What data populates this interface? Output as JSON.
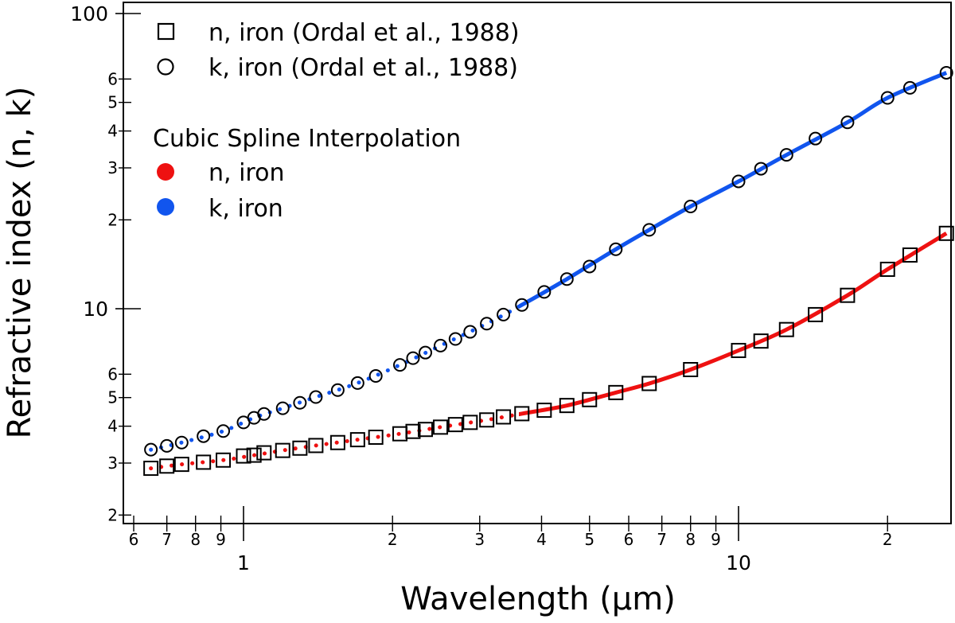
{
  "chart_data": {
    "type": "scatter",
    "xlabel": "Wavelength (µm)",
    "ylabel": "Refractive index (n, k)",
    "xscale": "log",
    "yscale": "log",
    "xlim": [
      0.6,
      28
    ],
    "ylim": [
      1.9,
      105
    ],
    "grid": false,
    "x_major_ticks": [
      {
        "value": 1,
        "label": "1"
      },
      {
        "value": 10,
        "label": "10"
      }
    ],
    "x_minor_ticks": [
      {
        "value": 0.6,
        "label": "6"
      },
      {
        "value": 0.7,
        "label": "7"
      },
      {
        "value": 0.8,
        "label": "8"
      },
      {
        "value": 0.9,
        "label": "9"
      },
      {
        "value": 2,
        "label": "2"
      },
      {
        "value": 3,
        "label": "3"
      },
      {
        "value": 4,
        "label": "4"
      },
      {
        "value": 5,
        "label": "5"
      },
      {
        "value": 6,
        "label": "6"
      },
      {
        "value": 7,
        "label": "7"
      },
      {
        "value": 8,
        "label": "8"
      },
      {
        "value": 9,
        "label": "9"
      },
      {
        "value": 20,
        "label": "2"
      }
    ],
    "y_major_ticks": [
      {
        "value": 10,
        "label": "10"
      },
      {
        "value": 100,
        "label": "100"
      }
    ],
    "y_minor_ticks": [
      {
        "value": 2,
        "label": "2"
      },
      {
        "value": 3,
        "label": "3"
      },
      {
        "value": 4,
        "label": "4"
      },
      {
        "value": 5,
        "label": "5"
      },
      {
        "value": 6,
        "label": "6"
      },
      {
        "value": 20,
        "label": "2"
      },
      {
        "value": 30,
        "label": "3"
      },
      {
        "value": 40,
        "label": "4"
      },
      {
        "value": 50,
        "label": "5"
      },
      {
        "value": 60,
        "label": "6"
      }
    ],
    "legend": {
      "position": "top-left",
      "data_entries": [
        {
          "marker": "open-square",
          "label": "n, iron (Ordal et al., 1988)"
        },
        {
          "marker": "open-circle",
          "label": "k, iron (Ordal et al., 1988)"
        }
      ],
      "interp_title": "Cubic Spline Interpolation",
      "interp_entries": [
        {
          "color": "#ee1111",
          "label": "n, iron"
        },
        {
          "color": "#1155ee",
          "label": "k, iron"
        }
      ]
    },
    "series": [
      {
        "name": "n, iron (Ordal et al., 1988)",
        "marker": "open-square",
        "x": [
          0.65,
          0.7,
          0.75,
          0.83,
          0.91,
          1.0,
          1.05,
          1.1,
          1.2,
          1.3,
          1.4,
          1.55,
          1.7,
          1.85,
          2.07,
          2.2,
          2.33,
          2.5,
          2.68,
          2.87,
          3.1,
          3.35,
          3.65,
          4.05,
          4.5,
          5.0,
          5.65,
          6.6,
          8.0,
          10.0,
          11.1,
          12.5,
          14.3,
          16.6,
          20.0,
          22.2,
          26.3
        ],
        "y": [
          2.88,
          2.93,
          2.97,
          3.02,
          3.07,
          3.17,
          3.19,
          3.25,
          3.31,
          3.37,
          3.44,
          3.52,
          3.6,
          3.67,
          3.77,
          3.84,
          3.9,
          3.97,
          4.05,
          4.12,
          4.2,
          4.3,
          4.41,
          4.53,
          4.7,
          4.92,
          5.2,
          5.58,
          6.22,
          7.22,
          7.77,
          8.5,
          9.55,
          11.1,
          13.6,
          15.2,
          18.0
        ]
      },
      {
        "name": "k, iron (Ordal et al., 1988)",
        "marker": "open-circle",
        "x": [
          0.65,
          0.7,
          0.75,
          0.83,
          0.91,
          1.0,
          1.05,
          1.1,
          1.2,
          1.3,
          1.4,
          1.55,
          1.7,
          1.85,
          2.07,
          2.2,
          2.33,
          2.5,
          2.68,
          2.87,
          3.1,
          3.35,
          3.65,
          4.05,
          4.5,
          5.0,
          5.65,
          6.6,
          8.0,
          10.0,
          11.1,
          12.5,
          14.3,
          16.6,
          20.0,
          22.2,
          26.3
        ],
        "y": [
          3.33,
          3.43,
          3.52,
          3.7,
          3.85,
          4.12,
          4.27,
          4.4,
          4.6,
          4.8,
          5.02,
          5.3,
          5.6,
          5.92,
          6.45,
          6.8,
          7.1,
          7.5,
          7.9,
          8.35,
          8.9,
          9.55,
          10.3,
          11.4,
          12.6,
          13.9,
          15.9,
          18.5,
          22.2,
          27.0,
          29.8,
          33.2,
          37.7,
          42.8,
          51.8,
          56.0,
          63.0
        ]
      },
      {
        "name": "n, iron",
        "line": "cubic spline",
        "color": "#ee1111",
        "x": [
          0.65,
          0.75,
          0.91,
          1.05,
          1.2,
          1.4,
          1.7,
          2.07,
          2.5,
          3.1,
          3.65,
          4.5,
          5.65,
          6.6,
          8.0,
          10.0,
          12.5,
          16.6,
          20.0,
          26.3
        ],
        "y": [
          2.88,
          2.97,
          3.07,
          3.19,
          3.31,
          3.44,
          3.6,
          3.77,
          3.97,
          4.2,
          4.41,
          4.7,
          5.2,
          5.58,
          6.22,
          7.22,
          8.5,
          11.1,
          13.6,
          18.0
        ]
      },
      {
        "name": "k, iron",
        "line": "cubic spline",
        "color": "#1155ee",
        "x": [
          0.65,
          0.75,
          0.91,
          1.05,
          1.2,
          1.4,
          1.7,
          2.07,
          2.5,
          3.1,
          3.65,
          4.5,
          5.65,
          6.6,
          8.0,
          10.0,
          12.5,
          16.6,
          20.0,
          26.3
        ],
        "y": [
          3.33,
          3.52,
          3.85,
          4.27,
          4.6,
          5.02,
          5.6,
          6.45,
          7.5,
          8.9,
          10.3,
          12.6,
          15.9,
          18.5,
          22.2,
          27.0,
          33.2,
          42.8,
          51.8,
          63.0
        ]
      }
    ]
  }
}
